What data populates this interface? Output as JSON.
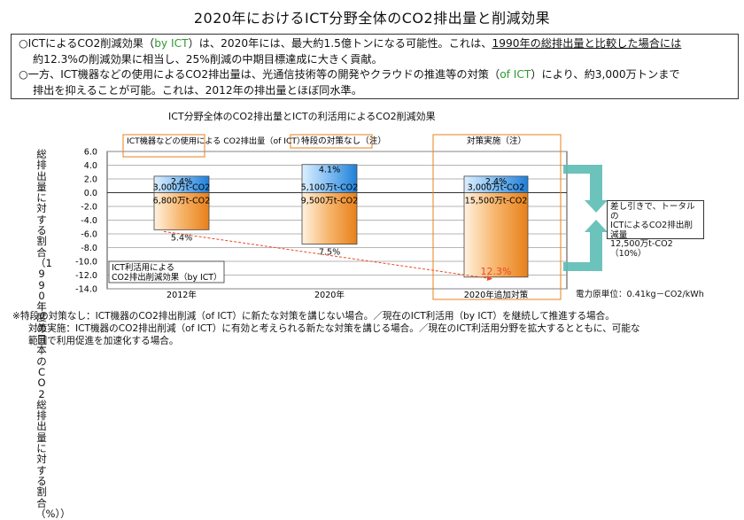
{
  "title": "2020年におけるICT分野全体のCO2排出量と削減効果",
  "summary": {
    "line1a": "○ICTによるCO2削減効果（",
    "line1b": "by ICT",
    "line1c": "）は、2020年には、最大約1.5億トンになる可能性。これは、",
    "line1d": "1990年の総排出量と比較した場合には",
    "line2": "約12.3%の削減効果に相当し、25%削減の中期目標達成に大きく貢献。",
    "line3a": "○一方、ICT機器などの使用によるCO2排出量は、光通信技術等の開発やクラウドの推進等の対策（",
    "line3b": "of ICT",
    "line3c": "）により、約3,000万トンまで",
    "line4": "排出を抑えることが可能。これは、2012年の排出量とほぼ同水準。"
  },
  "chart_data": {
    "type": "bar",
    "title": "ICT分野全体のCO2排出量とICTの利活用によるCO2削減効果",
    "ylabel": "総排出量に対する割合（1990年度の日本のCO2総排出量に対する割合（%））",
    "ylim": [
      -14.0,
      6.0
    ],
    "yticks": [
      "6.0",
      "4.0",
      "2.0",
      "0.0",
      "-2.0",
      "-4.0",
      "-6.0",
      "-8.0",
      "-10.0",
      "-12.0",
      "-14.0"
    ],
    "categories": [
      "2012年",
      "2020年",
      "2020年追加対策"
    ],
    "series": [
      {
        "name": "ICT機器などの使用によるCO2排出量（of ICT）",
        "values": [
          2.4,
          4.1,
          2.4
        ],
        "labels_pct": [
          "2.4%",
          "4.1%",
          "2.4%"
        ],
        "labels_t": [
          "3,000万t-CO2",
          "5,100万t-CO2",
          "3,000万t-CO2"
        ]
      },
      {
        "name": "ICT利活用によるCO2排出削減効果（by ICT）",
        "values": [
          -5.4,
          -7.5,
          -12.3
        ],
        "labels_pct": [
          "5.4%",
          "7.5%",
          "12.3%"
        ],
        "labels_t": [
          "6,800万t-CO2",
          "9,500万t-CO2",
          "15,500万t-CO2"
        ]
      }
    ],
    "group_labels": [
      "ICT機器などの使用による CO2排出量（of ICT）",
      "特段の対策なし（注）",
      "対策実施（注）"
    ],
    "legend_by_ict": [
      "ICT利活用による",
      "CO2排出削減効果（by ICT）"
    ],
    "result": [
      "差し引きで、トータルの",
      "ICTによるCO2排出削減量",
      "12,500万t-CO2（10%）"
    ],
    "unit_note": "電力原単位：0.41kg－CO2/kWh",
    "colors": {
      "positive": "#1f7fd8",
      "negative": "#e8801a",
      "arrow": "#5cbcb4",
      "red": "#e84a2a",
      "panel": "#ffffff",
      "plot": "#ffffff"
    }
  },
  "notes": [
    "※特段の対策なし：ICT機器のCO2排出削減（of ICT）に新たな対策を講じない場合。／現在のICT利活用（by ICT）を継続して推進する場合。",
    "対策実施：ICT機器のCO2排出削減（of ICT）に有効と考えられる新たな対策を講じる場合。／現在のICT利活用分野を拡大するとともに、可能な",
    "範囲で利用促進を加速化する場合。"
  ]
}
